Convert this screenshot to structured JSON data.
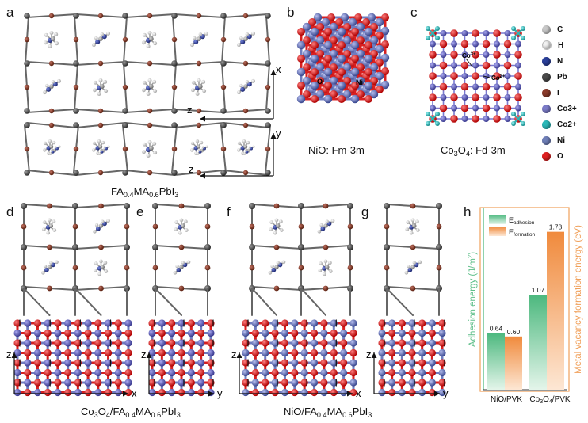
{
  "panels": {
    "a": "a",
    "b": "b",
    "c": "c",
    "d": "d",
    "e": "e",
    "f": "f",
    "g": "g",
    "h": "h"
  },
  "captions": {
    "a": {
      "pre": "FA",
      "s1": "0.4",
      "mid": "MA",
      "s2": "0.6",
      "post": "PbI",
      "s3": "3"
    },
    "b": "NiO: Fm-3m",
    "c": {
      "pre": "Co",
      "s1": "3",
      "mid": "O",
      "s2": "4",
      "post": ": Fd-3m"
    },
    "de": {
      "a": "Co",
      "b": "3",
      "c": "O",
      "d": "4",
      "e": "/FA",
      "f": "0.4",
      "g": "MA",
      "h": "0.6",
      "i": "PbI",
      "j": "3"
    },
    "fg": {
      "a": "NiO/FA",
      "b": "0.4",
      "c": "MA",
      "d": "0.6",
      "e": "PbI",
      "f": "3"
    }
  },
  "atom_labels": {
    "o": "O",
    "ni": "Ni",
    "co3": "Co",
    "co3sup": "3+",
    "co2": "Co",
    "co2sup": "2+"
  },
  "axes_labels": {
    "x": "x",
    "y": "y",
    "z": "z"
  },
  "legend": [
    {
      "label": "C",
      "color": "#c8c8c8"
    },
    {
      "label": "H",
      "color": "#f2f2f2"
    },
    {
      "label": "N",
      "color": "#2a3f9a"
    },
    {
      "label": "Pb",
      "color": "#4a4a4a"
    },
    {
      "label": "I",
      "color": "#8a3a2a"
    },
    {
      "label": "Co3+",
      "color": "#7b7bc8"
    },
    {
      "label": "Co2+",
      "color": "#2ab8b8"
    },
    {
      "label": "Ni",
      "color": "#6f7fb8"
    },
    {
      "label": "O",
      "color": "#e02020"
    }
  ],
  "colors": {
    "pb": "#3d3d3d",
    "i": "#7a3320",
    "bond": "#555555",
    "o": "#d81f1f",
    "ni": "#6e7cbf",
    "co3": "#6a6ab8",
    "co2": "#29b3b3",
    "adhesion": "#5fbf8a",
    "formation": "#f0a05a"
  },
  "chart_data": {
    "type": "bar",
    "categories": [
      "NiO/PVK",
      "Co3O4/PVK"
    ],
    "series": [
      {
        "name": "Eadhesion",
        "values": [
          0.64,
          1.07
        ]
      },
      {
        "name": "Eformation",
        "values": [
          0.6,
          1.78
        ]
      }
    ],
    "ylabel_left": "Adhesion energy (J/m2)",
    "ylabel_right": "Metal vacancy formation energy (eV)",
    "ylim": [
      0,
      2
    ],
    "legend_position": "top-left",
    "tick_labels": [
      "NiO/PVK",
      "Co3O4/PVK"
    ],
    "legend_text": {
      "a_main": "E",
      "a_sub": "adhesion",
      "f_main": "E",
      "f_sub": "formation"
    },
    "ylabel_left_parts": {
      "main": "Adhesion energy (J/m",
      "sup": "2",
      "end": ")"
    },
    "ylabel_right_text": "Metal vacancy formation energy (eV)",
    "value_labels": [
      "0.64",
      "0.60",
      "1.07",
      "1.78"
    ],
    "cat_parts": {
      "c1": "NiO/PVK",
      "c2a": "Co",
      "c2b": "3",
      "c2c": "O",
      "c2d": "4",
      "c2e": "/PVK"
    }
  }
}
